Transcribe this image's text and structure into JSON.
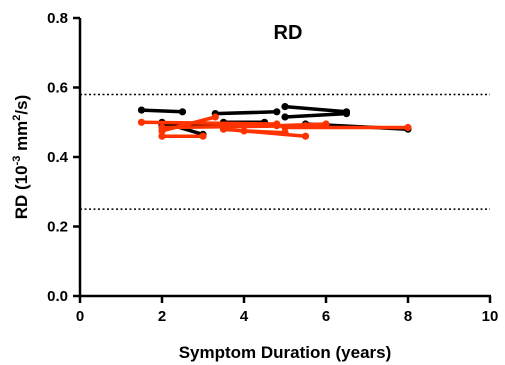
{
  "chart_data": {
    "type": "line",
    "title": "RD",
    "xlabel": "Symptom Duration (years)",
    "ylabel": {
      "prefix": "RD (10",
      "sup1": "-3",
      "middle": " mm",
      "sup2": "2",
      "suffix": "/s)"
    },
    "xlim": [
      0,
      10
    ],
    "ylim": [
      0,
      0.8
    ],
    "x_ticks": [
      0,
      2,
      4,
      6,
      8,
      10
    ],
    "x_tick_labels": [
      "0",
      "2",
      "4",
      "6",
      "8",
      "10"
    ],
    "y_ticks": [
      0,
      0.2,
      0.4,
      0.6,
      0.8
    ],
    "y_tick_labels": [
      "0.0",
      "0.2",
      "0.4",
      "0.6",
      "0.8"
    ],
    "grid": false,
    "reference_lines": [
      {
        "axis": "y",
        "value": 0.58,
        "style": "dotted"
      },
      {
        "axis": "y",
        "value": 0.25,
        "style": "dotted"
      }
    ],
    "series": [
      {
        "color": "#000000",
        "points": [
          [
            1.5,
            0.535
          ],
          [
            2.5,
            0.53
          ]
        ]
      },
      {
        "color": "#000000",
        "points": [
          [
            2.0,
            0.5
          ],
          [
            3.0,
            0.465
          ]
        ]
      },
      {
        "color": "#000000",
        "points": [
          [
            2.0,
            0.49
          ],
          [
            3.5,
            0.495
          ]
        ]
      },
      {
        "color": "#000000",
        "points": [
          [
            3.3,
            0.525
          ],
          [
            4.8,
            0.53
          ]
        ]
      },
      {
        "color": "#000000",
        "points": [
          [
            3.5,
            0.5
          ],
          [
            4.5,
            0.5
          ]
        ]
      },
      {
        "color": "#000000",
        "points": [
          [
            5.0,
            0.545
          ],
          [
            6.5,
            0.53
          ]
        ]
      },
      {
        "color": "#000000",
        "points": [
          [
            5.0,
            0.515
          ],
          [
            6.5,
            0.525
          ]
        ]
      },
      {
        "color": "#000000",
        "points": [
          [
            5.5,
            0.495
          ],
          [
            8.0,
            0.48
          ]
        ]
      },
      {
        "color": "#ff3300",
        "points": [
          [
            1.5,
            0.5
          ],
          [
            4.8,
            0.495
          ]
        ]
      },
      {
        "color": "#ff3300",
        "points": [
          [
            2.0,
            0.475
          ],
          [
            3.3,
            0.515
          ]
        ]
      },
      {
        "color": "#ff3300",
        "points": [
          [
            2.0,
            0.46
          ],
          [
            3.0,
            0.46
          ]
        ]
      },
      {
        "color": "#ff3300",
        "points": [
          [
            2.0,
            0.485
          ],
          [
            5.5,
            0.49
          ]
        ]
      },
      {
        "color": "#ff3300",
        "points": [
          [
            3.5,
            0.48
          ],
          [
            5.5,
            0.46
          ]
        ]
      },
      {
        "color": "#ff3300",
        "points": [
          [
            4.0,
            0.475
          ],
          [
            5.0,
            0.47
          ]
        ]
      },
      {
        "color": "#ff3300",
        "points": [
          [
            5.0,
            0.485
          ],
          [
            8.0,
            0.485
          ]
        ]
      },
      {
        "color": "#ff3300",
        "points": [
          [
            4.8,
            0.49
          ],
          [
            6.0,
            0.495
          ]
        ]
      }
    ]
  }
}
